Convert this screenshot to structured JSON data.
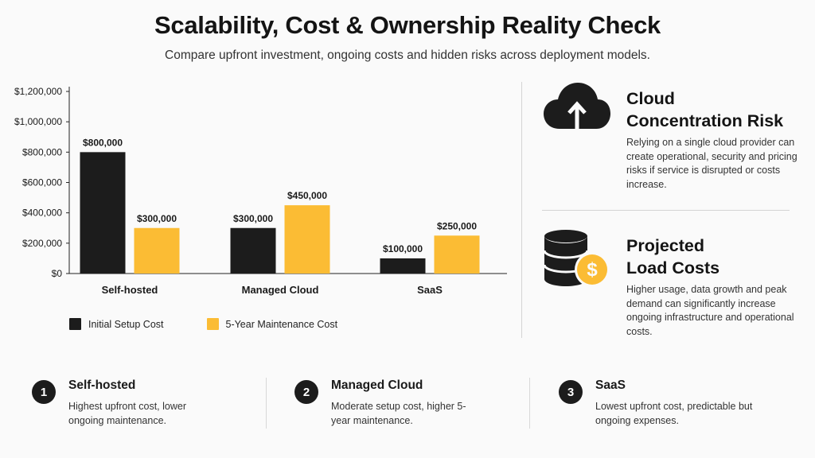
{
  "header": {
    "title": "Scalability, Cost & Ownership Reality Check",
    "subtitle": "Compare upfront investment, ongoing costs and hidden risks across deployment models."
  },
  "colors": {
    "setup": "#1c1c1c",
    "maintenance": "#fbbc34",
    "axis": "#222222",
    "grid": "#e4e4e4"
  },
  "chart_data": {
    "type": "bar",
    "categories": [
      "Self-hosted",
      "Managed Cloud",
      "SaaS"
    ],
    "series": [
      {
        "name": "Initial Setup Cost",
        "values": [
          800000,
          300000,
          100000
        ],
        "labels": [
          "$800,000",
          "$300,000",
          "$100,000"
        ]
      },
      {
        "name": "5-Year Maintenance Cost",
        "values": [
          300000,
          450000,
          250000
        ],
        "labels": [
          "$300,000",
          "$450,000",
          "$250,000"
        ]
      }
    ],
    "yticks": [
      "$0",
      "$200,000",
      "$400,000",
      "$600,000",
      "$800,000",
      "$1,000,000",
      "$1,200,000"
    ],
    "ylim": [
      0,
      1200000
    ],
    "legend_position": "bottom-left",
    "grid": false
  },
  "legend": {
    "setup": "Initial Setup Cost",
    "maintenance": "5-Year Maintenance Cost"
  },
  "cards": {
    "cloud": {
      "icon": "cloud-upload-icon",
      "title_line1": "Cloud",
      "title_line2": "Concentration Risk",
      "body": "Relying on a single cloud provider can create operational, security and pricing risks if service is disrupted or costs increase."
    },
    "load": {
      "icon": "database-dollar-icon",
      "title_line1": "Projected",
      "title_line2": "Load Costs",
      "body": "Higher usage, data growth and peak demand can significantly increase ongoing infrastructure and operational costs."
    }
  },
  "steps": [
    {
      "number": "1",
      "title": "Self-hosted",
      "body": "Highest upfront cost, lower ongoing maintenance."
    },
    {
      "number": "2",
      "title": "Managed Cloud",
      "body": "Moderate setup cost, higher 5-year maintenance."
    },
    {
      "number": "3",
      "title": "SaaS",
      "body": "Lowest upfront cost, predictable but ongoing expenses."
    }
  ]
}
